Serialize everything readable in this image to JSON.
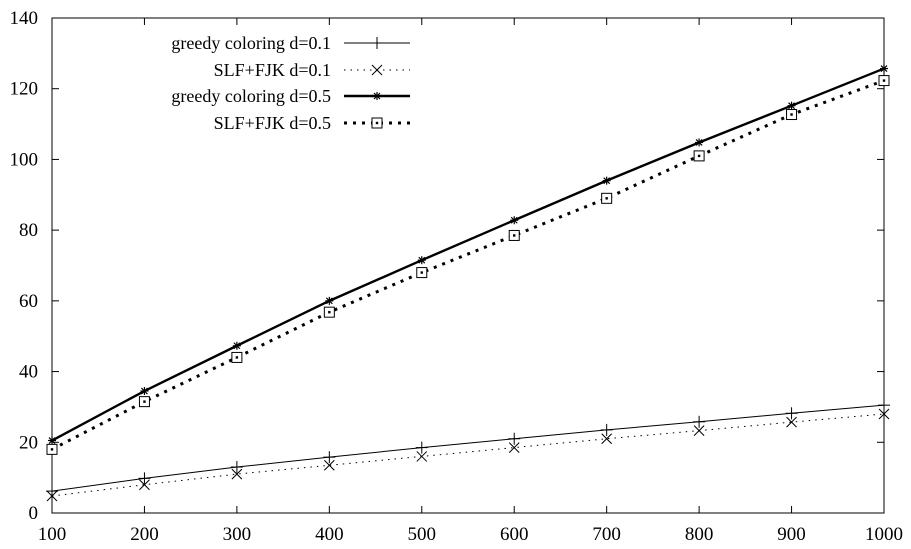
{
  "chart_data": {
    "type": "line",
    "title": "",
    "xlabel": "",
    "ylabel": "",
    "xlim": [
      100,
      1000
    ],
    "ylim": [
      0,
      140
    ],
    "x_ticks": [
      100,
      200,
      300,
      400,
      500,
      600,
      700,
      800,
      900,
      1000
    ],
    "y_ticks": [
      0,
      20,
      40,
      60,
      80,
      100,
      120,
      140
    ],
    "grid": false,
    "legend_position": "top-left",
    "x": [
      100,
      200,
      300,
      400,
      500,
      600,
      700,
      800,
      900,
      1000
    ],
    "series": [
      {
        "name": "greedy coloring d=0.1",
        "line": "solid-thin",
        "marker": "plus",
        "values": [
          6.2,
          9.8,
          13.0,
          15.8,
          18.5,
          21.0,
          23.5,
          25.8,
          28.2,
          30.5
        ]
      },
      {
        "name": "SLF+FJK d=0.1",
        "line": "dotted-thin",
        "marker": "cross",
        "values": [
          4.8,
          8.0,
          11.0,
          13.5,
          16.0,
          18.5,
          21.0,
          23.3,
          25.7,
          28.0
        ]
      },
      {
        "name": "greedy coloring d=0.5",
        "line": "solid-thick",
        "marker": "star",
        "values": [
          20.5,
          34.5,
          47.3,
          60.0,
          71.5,
          82.8,
          94.0,
          104.8,
          115.2,
          125.7
        ]
      },
      {
        "name": "SLF+FJK d=0.5",
        "line": "dotted-thick",
        "marker": "square",
        "values": [
          18.0,
          31.5,
          44.0,
          56.8,
          68.0,
          78.5,
          89.0,
          101.0,
          112.7,
          122.3
        ]
      }
    ]
  }
}
